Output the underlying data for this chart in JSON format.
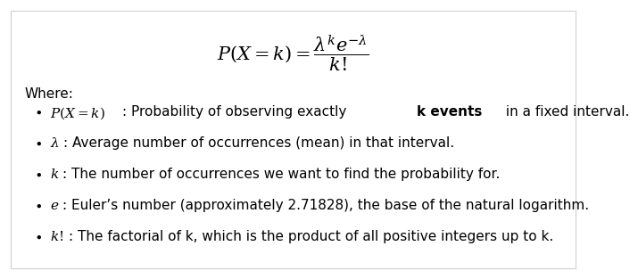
{
  "background_color": "#ffffff",
  "border_color": "#d0d0d0",
  "text_color": "#000000",
  "formula_fontsize": 15,
  "where_fontsize": 11,
  "bullet_fontsize": 11,
  "where_label": "Where:",
  "bullets": [
    {
      "math_latex": "$P(X = k)$",
      "suffix": ": Probability of observing exactly ",
      "bold_word": "k events",
      "rest": " in a fixed interval."
    },
    {
      "math_latex": "$\\lambda$",
      "suffix": ": Average number of occurrences (mean) in that interval.",
      "bold_word": "",
      "rest": ""
    },
    {
      "math_latex": "$k$",
      "suffix": ": The number of occurrences we want to find the probability for.",
      "bold_word": "",
      "rest": ""
    },
    {
      "math_latex": "$e$",
      "suffix": ": Euler’s number (approximately 2.71828), the base of the natural logarithm.",
      "bold_word": "",
      "rest": ""
    },
    {
      "math_latex": "$k!$",
      "suffix": ": The factorial of k, which is the product of all positive integers up to k.",
      "bold_word": "",
      "rest": ""
    }
  ]
}
